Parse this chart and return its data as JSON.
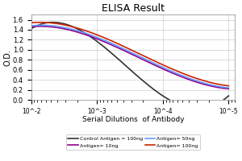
{
  "title": "ELISA Result",
  "ylabel": "O.D.",
  "xlabel": "Serial Dilutions  of Antibody",
  "x_values": [
    0.01,
    0.001,
    0.0001,
    1e-05
  ],
  "lines": {
    "control": {
      "label": "Control Antigen = 100ng",
      "color": "#333333",
      "y": [
        1.42,
        1.17,
        0.08,
        0.08
      ]
    },
    "antigen10": {
      "label": "Antigen= 10ng",
      "color": "#8B008B",
      "y": [
        1.46,
        1.22,
        0.62,
        0.22
      ]
    },
    "antigen50": {
      "label": "Antigen= 50ng",
      "color": "#6699FF",
      "y": [
        1.48,
        1.25,
        0.65,
        0.24
      ]
    },
    "antigen100": {
      "label": "Antigen= 100ng",
      "color": "#CC2200",
      "y": [
        1.54,
        1.3,
        0.7,
        0.28
      ]
    }
  },
  "ylim": [
    0,
    1.7
  ],
  "yticks": [
    0,
    0.2,
    0.4,
    0.6,
    0.8,
    1.0,
    1.2,
    1.4,
    1.6
  ],
  "background_color": "#ffffff",
  "grid_color": "#cccccc"
}
